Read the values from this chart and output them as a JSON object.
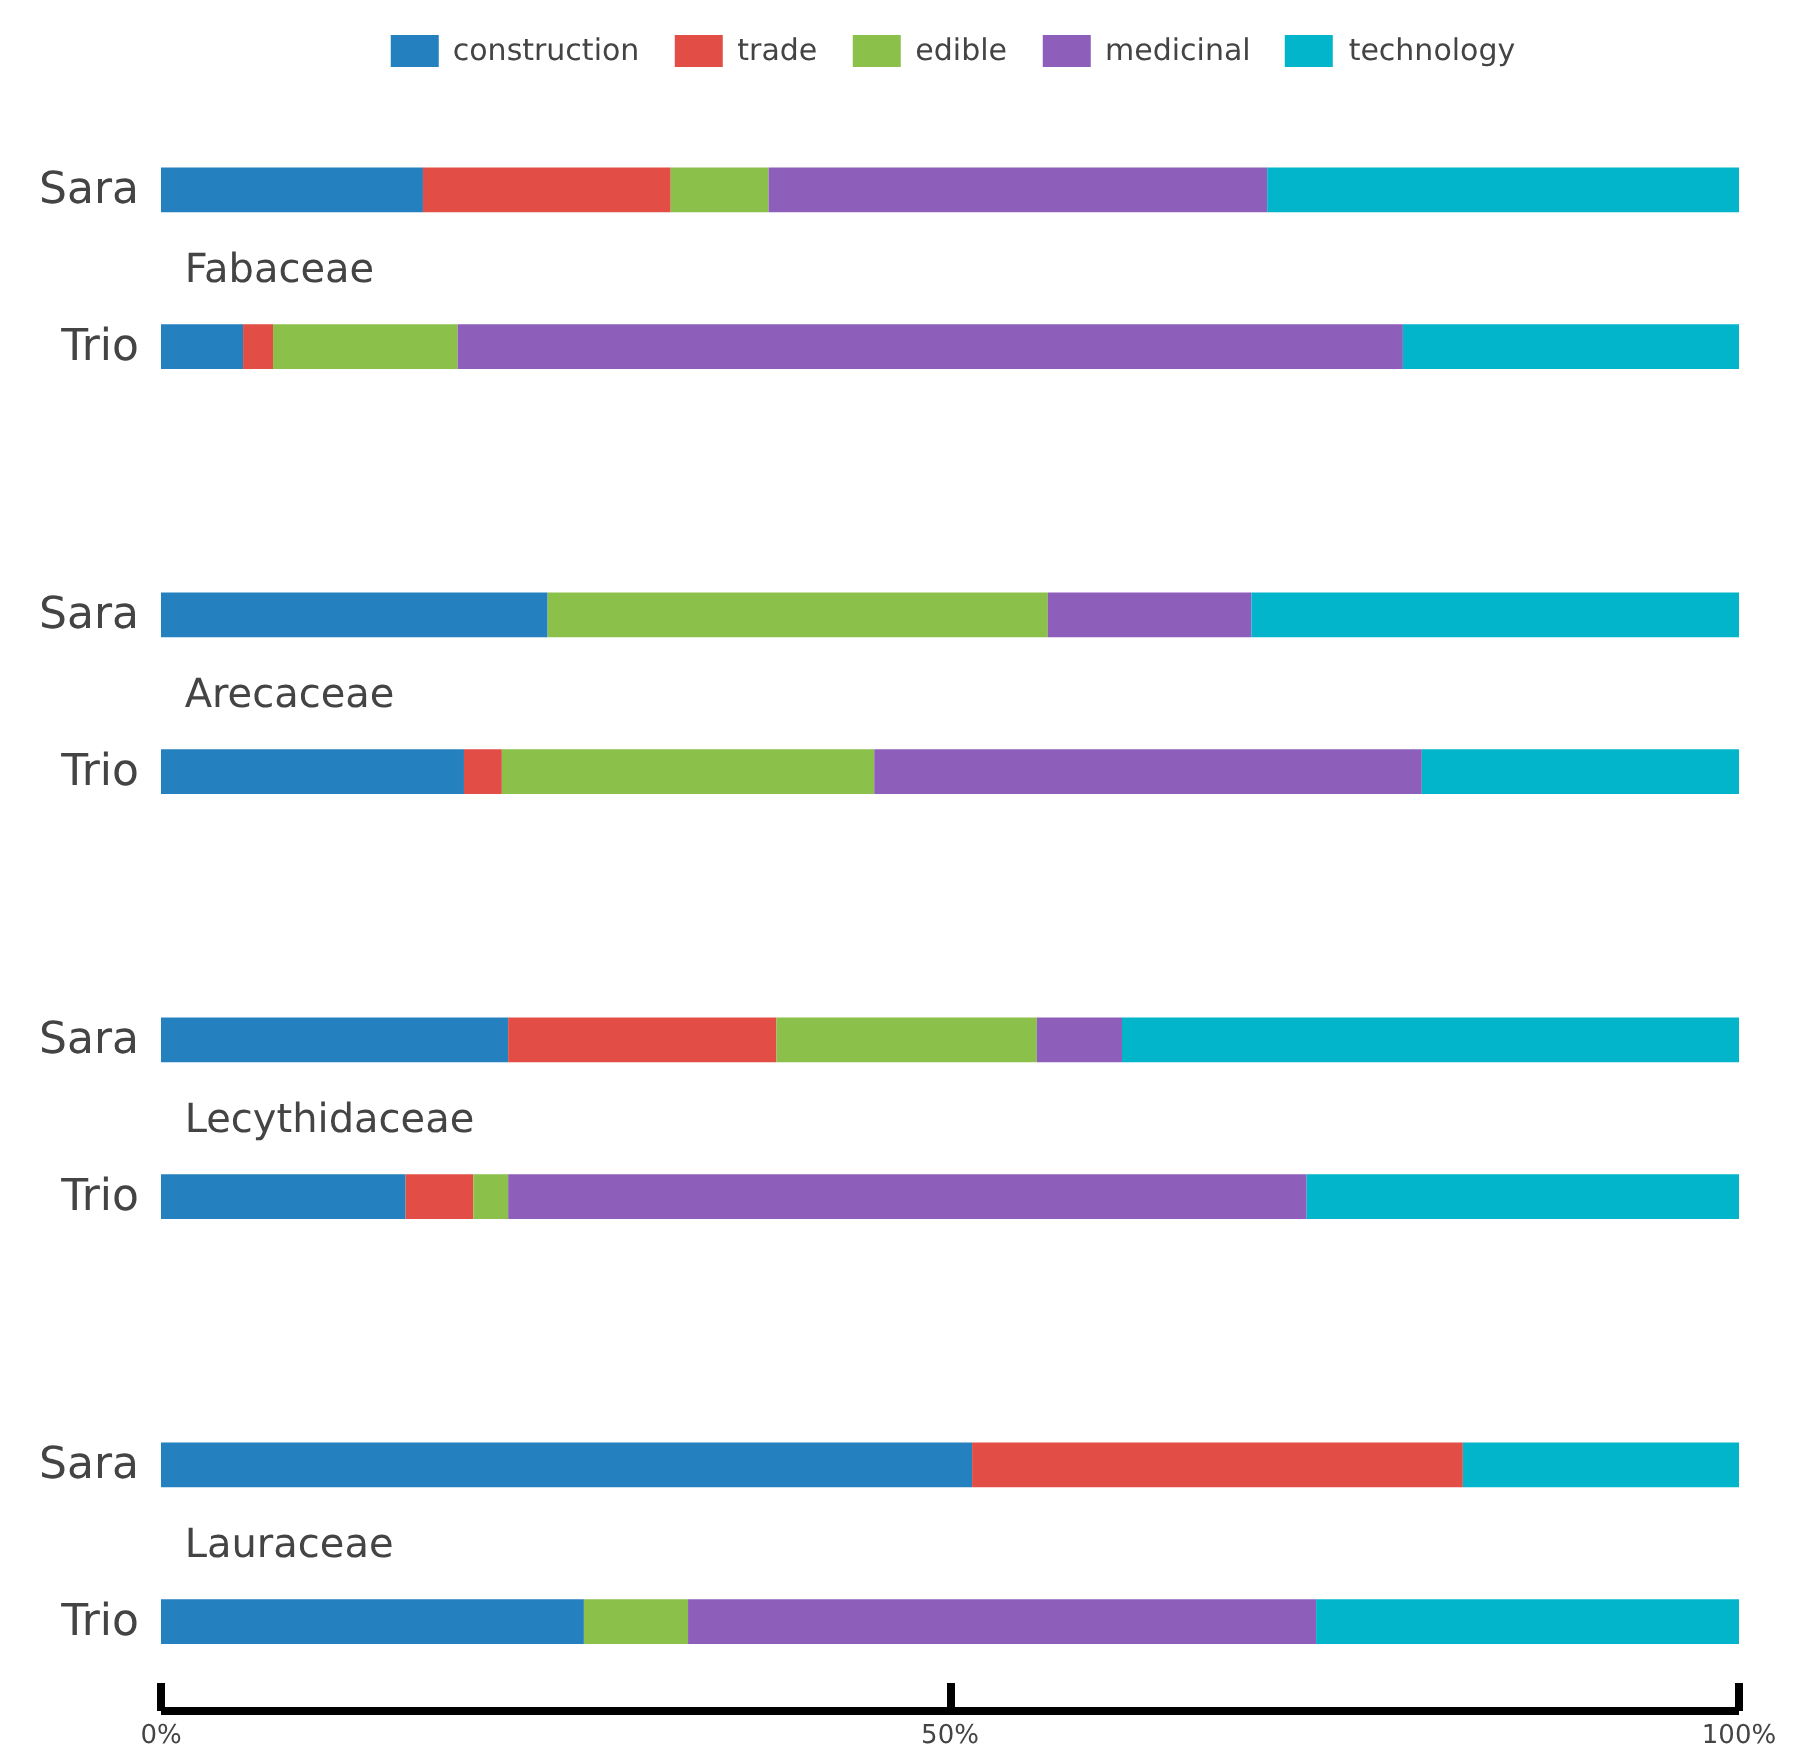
{
  "chart_data": {
    "type": "bar",
    "orientation": "horizontal",
    "stacked": true,
    "categories": [
      "Sara",
      "Trio",
      "Sara",
      "Trio",
      "Sara",
      "Trio",
      "Sara",
      "Trio"
    ],
    "annotations": [
      "Fabaceae",
      "Arecaceae",
      "Lecythidaceae",
      "Lauraceae"
    ],
    "series": [
      {
        "name": "construction",
        "color": "#2580bf",
        "values": [
          16.6,
          5.2,
          24.5,
          19.2,
          22.0,
          15.5,
          51.4,
          26.8
        ]
      },
      {
        "name": "trade",
        "color": "#e24e45",
        "values": [
          15.7,
          1.9,
          0,
          2.4,
          17.0,
          4.3,
          31.1,
          0
        ]
      },
      {
        "name": "edible",
        "color": "#8bc04a",
        "values": [
          6.2,
          11.7,
          31.7,
          23.6,
          16.5,
          2.2,
          0,
          6.6
        ]
      },
      {
        "name": "medicinal",
        "color": "#8d5fba",
        "values": [
          31.6,
          59.9,
          12.9,
          34.7,
          5.4,
          50.6,
          0,
          39.8
        ]
      },
      {
        "name": "technology",
        "color": "#02b5ca",
        "values": [
          29.9,
          21.3,
          30.9,
          20.1,
          39.1,
          27.4,
          17.5,
          26.8
        ]
      }
    ],
    "xlim": [
      0,
      100
    ],
    "xticks": [
      {
        "value": 0,
        "label": "0%"
      },
      {
        "value": 50,
        "label": "50%"
      },
      {
        "value": 100,
        "label": "100%"
      }
    ],
    "grid": false,
    "legend": "top"
  }
}
